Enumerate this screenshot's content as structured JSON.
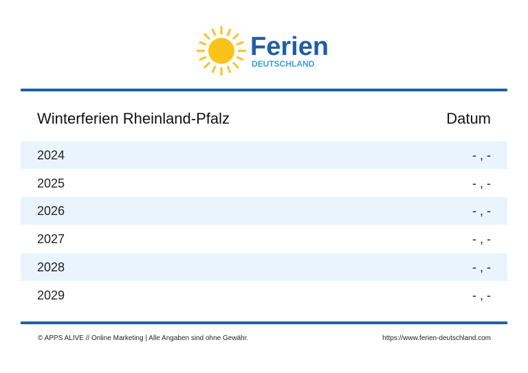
{
  "logo": {
    "title": "Ferien",
    "subtitle": "DEUTSCHLAND"
  },
  "table": {
    "header": [
      "Winterferien Rheinland-Pfalz",
      "Datum"
    ],
    "rows": [
      [
        "2024",
        "- , -"
      ],
      [
        "2025",
        "- , -"
      ],
      [
        "2026",
        "- , -"
      ],
      [
        "2027",
        "- , -"
      ],
      [
        "2028",
        "- , -"
      ],
      [
        "2029",
        "- , -"
      ]
    ]
  },
  "footer": {
    "left": "© APPS ALIVE // Online Marketing  |  Alle Angaben sind ohne Gewähr.",
    "right": "https://www.ferien-deutschland.com"
  }
}
